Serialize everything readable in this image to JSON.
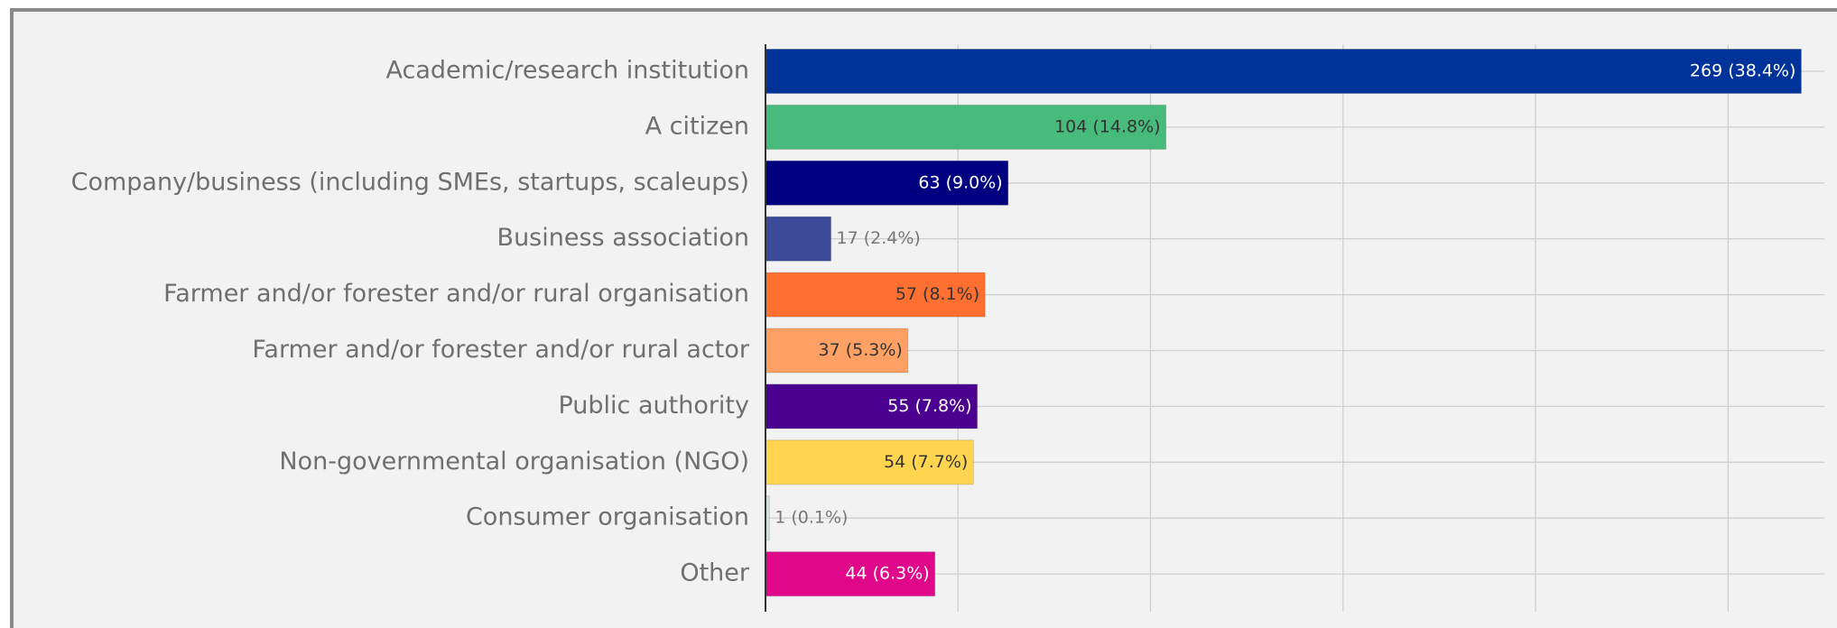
{
  "chart_data": {
    "type": "hbar",
    "categories": [
      "Academic/research institution",
      "A citizen",
      "Company/business (including SMEs, startups, scaleups)",
      "Business association",
      "Farmer and/or forester and/or rural organisation",
      "Farmer and/or forester and/or rural actor",
      "Public authority",
      "Non-governmental organisation (NGO)",
      "Consumer organisation",
      "Other"
    ],
    "values": [
      269,
      104,
      63,
      17,
      57,
      37,
      55,
      54,
      1,
      44
    ],
    "value_labels": [
      "269 (38.4%)",
      "104 (14.8%)",
      "63 (9.0%)",
      "17 (2.4%)",
      "57 (8.1%)",
      "37 (5.3%)",
      "55 (7.8%)",
      "54 (7.7%)",
      "1 (0.1%)",
      "44 (6.3%)"
    ],
    "colors": [
      "#00339a",
      "#46bb7b",
      "#000080",
      "#3c4a9a",
      "#ff7030",
      "#ffa064",
      "#4b0090",
      "#ffd54f",
      "#c8e6dc",
      "#e0088a"
    ],
    "xlim": [
      0,
      275
    ],
    "xticks": [
      0,
      50,
      100,
      150,
      200,
      250
    ],
    "grid": true
  }
}
